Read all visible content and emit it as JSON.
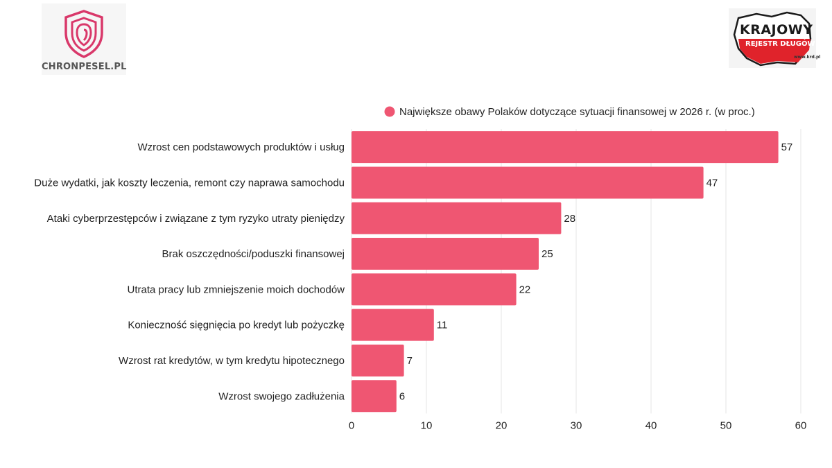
{
  "logos": {
    "left_text": "CHRONPESEL.PL",
    "right_line1": "KRAJOWY",
    "right_line2": "REJESTR DŁUGÓW",
    "right_line3": "www.krd.pl"
  },
  "colors": {
    "bar": "#ef5672",
    "grid": "#e6e6e6",
    "text": "#222222",
    "logo_red": "#e0232b",
    "logo_pink": "#d9386a"
  },
  "chart_data": {
    "type": "bar",
    "orientation": "horizontal",
    "title": "",
    "series": [
      {
        "name": "Największe obawy Polaków dotyczące sytuacji finansowej w 2026 r. (w proc.)",
        "values": [
          57,
          47,
          28,
          25,
          22,
          11,
          7,
          6
        ]
      }
    ],
    "categories": [
      "Wzrost cen podstawowych produktów i usług",
      "Duże wydatki, jak koszty leczenia, remont czy naprawa samochodu",
      "Ataki cyberprzestępców i związane z tym ryzyko utraty pieniędzy",
      "Brak oszczędności/poduszki finansowej",
      "Utrata pracy lub zmniejszenie moich dochodów",
      "Konieczność sięgnięcia po kredyt lub pożyczkę",
      "Wzrost rat kredytów, w tym kredytu hipotecznego",
      "Wzrost swojego zadłużenia"
    ],
    "xlim": [
      0,
      60
    ],
    "xticks": [
      0,
      10,
      20,
      30,
      40,
      50,
      60
    ],
    "xlabel": "",
    "ylabel": "",
    "grid": true,
    "legend": "top-right"
  }
}
